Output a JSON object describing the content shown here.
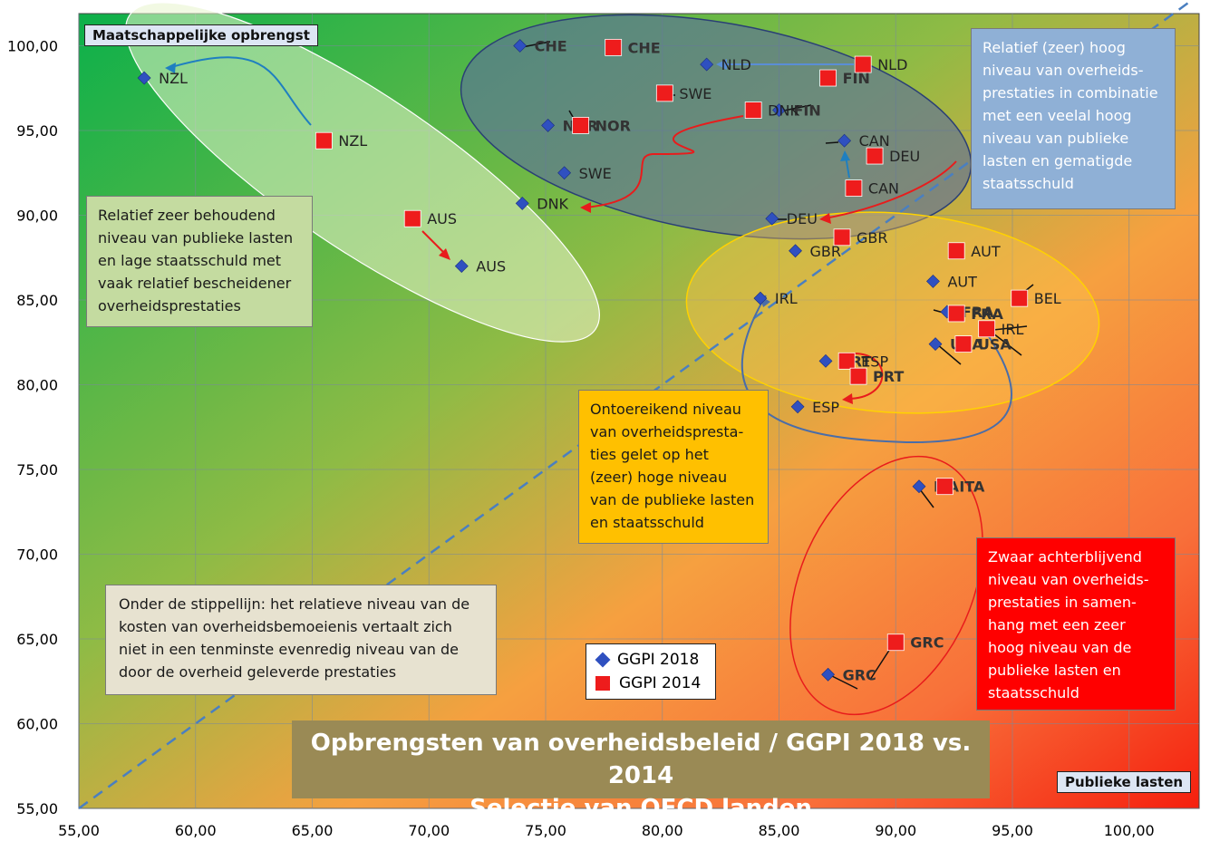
{
  "chart_data": {
    "type": "scatter",
    "title": "Opbrengsten van overheidsbeleid / GGPI 2018 vs. 2014",
    "subtitle": "Selectie van OECD landen",
    "xlabel": "Publieke lasten",
    "ylabel": "Maatschappelijke opbrengst",
    "xlim": [
      55,
      103
    ],
    "ylim": [
      55,
      101
    ],
    "x_ticks": [
      "55,00",
      "60,00",
      "65,00",
      "70,00",
      "75,00",
      "80,00",
      "85,00",
      "90,00",
      "95,00",
      "100,00"
    ],
    "y_ticks": [
      "55,00",
      "60,00",
      "65,00",
      "70,00",
      "75,00",
      "80,00",
      "85,00",
      "90,00",
      "95,00",
      "100,00"
    ],
    "grid": true,
    "legend_position": "bottom-center",
    "diagonal_reference": [
      [
        55,
        55
      ],
      [
        103,
        103
      ]
    ],
    "colors": {
      "series_2018": "#2f50c0",
      "series_2014": "#ee1c1c",
      "diagonal": "#4a7fc0"
    },
    "series": [
      {
        "name": "GGPI 2018",
        "marker": "diamond",
        "points": [
          {
            "label": "NZL",
            "x": 57.8,
            "y": 98.1,
            "bold": false
          },
          {
            "label": "CHE",
            "x": 73.9,
            "y": 100.0,
            "bold": true
          },
          {
            "label": "NLD",
            "x": 81.9,
            "y": 98.9,
            "bold": false
          },
          {
            "label": "NOR",
            "x": 75.1,
            "y": 95.3,
            "bold": true
          },
          {
            "label": "FIN",
            "x": 85.0,
            "y": 96.2,
            "bold": true
          },
          {
            "label": "CAN",
            "x": 87.8,
            "y": 94.4,
            "bold": false
          },
          {
            "label": "SWE",
            "x": 75.8,
            "y": 92.5,
            "bold": false
          },
          {
            "label": "DNK",
            "x": 74.0,
            "y": 90.7,
            "bold": false
          },
          {
            "label": "DEU",
            "x": 84.7,
            "y": 89.8,
            "bold": false
          },
          {
            "label": "AUS",
            "x": 71.4,
            "y": 87.0,
            "bold": false
          },
          {
            "label": "GBR",
            "x": 85.7,
            "y": 87.9,
            "bold": false
          },
          {
            "label": "AUT",
            "x": 91.6,
            "y": 86.1,
            "bold": false
          },
          {
            "label": "IRL",
            "x": 84.2,
            "y": 85.1,
            "bold": false
          },
          {
            "label": "FRA",
            "x": 92.2,
            "y": 84.3,
            "bold": true
          },
          {
            "label": "USA",
            "x": 91.7,
            "y": 82.4,
            "bold": true
          },
          {
            "label": "PRT",
            "x": 87.0,
            "y": 81.4,
            "bold": true
          },
          {
            "label": "ESP",
            "x": 85.8,
            "y": 78.7,
            "bold": false
          },
          {
            "label": "ITA",
            "x": 91.0,
            "y": 74.0,
            "bold": true
          },
          {
            "label": "GRC",
            "x": 87.1,
            "y": 62.9,
            "bold": true
          }
        ]
      },
      {
        "name": "GGPI 2014",
        "marker": "square",
        "points": [
          {
            "label": "NZL",
            "x": 65.5,
            "y": 94.4,
            "bold": false
          },
          {
            "label": "CHE",
            "x": 77.9,
            "y": 99.9,
            "bold": true
          },
          {
            "label": "NLD",
            "x": 88.6,
            "y": 98.9,
            "bold": false
          },
          {
            "label": "SWE",
            "x": 80.1,
            "y": 97.2,
            "bold": false
          },
          {
            "label": "FIN",
            "x": 87.1,
            "y": 98.1,
            "bold": true
          },
          {
            "label": "NOR",
            "x": 76.5,
            "y": 95.3,
            "bold": true
          },
          {
            "label": "DNK",
            "x": 83.9,
            "y": 96.2,
            "bold": false
          },
          {
            "label": "DEU",
            "x": 89.1,
            "y": 93.5,
            "bold": false
          },
          {
            "label": "CAN",
            "x": 88.2,
            "y": 91.6,
            "bold": false
          },
          {
            "label": "AUS",
            "x": 69.3,
            "y": 89.8,
            "bold": false
          },
          {
            "label": "GBR",
            "x": 87.7,
            "y": 88.7,
            "bold": false
          },
          {
            "label": "AUT",
            "x": 92.6,
            "y": 87.9,
            "bold": false
          },
          {
            "label": "BEL",
            "x": 95.3,
            "y": 85.1,
            "bold": false
          },
          {
            "label": "FRA",
            "x": 92.6,
            "y": 84.2,
            "bold": true
          },
          {
            "label": "IRL",
            "x": 93.9,
            "y": 83.3,
            "bold": false
          },
          {
            "label": "USA",
            "x": 92.9,
            "y": 82.4,
            "bold": true
          },
          {
            "label": "ESP",
            "x": 87.9,
            "y": 81.4,
            "bold": false
          },
          {
            "label": "PRT",
            "x": 88.4,
            "y": 80.5,
            "bold": true
          },
          {
            "label": "ITA",
            "x": 92.1,
            "y": 74.0,
            "bold": true
          },
          {
            "label": "GRC",
            "x": 90.0,
            "y": 64.8,
            "bold": true
          }
        ]
      }
    ],
    "annotations": [
      "Relatief zeer behoudend niveau van publieke lasten en lage staatsschuld met vaak relatief bescheidener overheidsprestaties",
      "Relatief (zeer) hoog niveau van overheids-prestaties in combinatie met een veelal hoog niveau van publieke lasten en gematigde staatsschuld",
      "Ontoereikend niveau van overheidsprestaties gelet op het (zeer) hoge niveau van de publieke lasten en staatsschuld",
      "Zwaar achterblijvend niveau van overheids-prestaties in samenhang met een zeer hoog niveau van de publieke lasten en staatsschuld",
      "Onder de stippellijn: het relatieve niveau van de kosten van overheidsbemoeienis vertaalt zich niet in een tenminste evenredig niveau van de door de overheid geleverde prestaties"
    ]
  },
  "texts": {
    "title_line1": "Opbrengsten van overheidsbeleid / GGPI 2018 vs. 2014",
    "title_line2": "Selectie van OECD landen",
    "y_axis_name": "Maatschappelijke opbrengst",
    "x_axis_name": "Publieke lasten",
    "legend_2018": "GGPI 2018",
    "legend_2014": "GGPI 2014",
    "box_green": [
      "Relatief zeer behoudend",
      "niveau van publieke lasten",
      "en lage staatsschuld met",
      "vaak relatief bescheidener",
      "overheidsprestaties"
    ],
    "box_blue": [
      "Relatief (zeer) hoog",
      "niveau van overheids-",
      "prestaties in combinatie",
      "met een veelal hoog",
      "niveau van publieke",
      "lasten en gematigde",
      "staatsschuld"
    ],
    "box_yellow": [
      "Ontoereikend niveau",
      "van overheidspresta-",
      "ties gelet op het",
      "(zeer)  hoge niveau",
      "van de publieke lasten",
      "en staatsschuld"
    ],
    "box_red": [
      "Zwaar achterblijvend",
      "niveau van overheids-",
      "prestaties in samen-",
      "hang met een zeer",
      "hoog niveau van de",
      "publieke lasten en",
      "staatsschuld"
    ],
    "box_note": [
      "Onder de stippellijn: het relatieve niveau van de",
      "kosten van overheidsbemoeienis vertaalt zich",
      "niet in een tenminste evenredig niveau van de",
      "door de overheid geleverde prestaties"
    ]
  }
}
